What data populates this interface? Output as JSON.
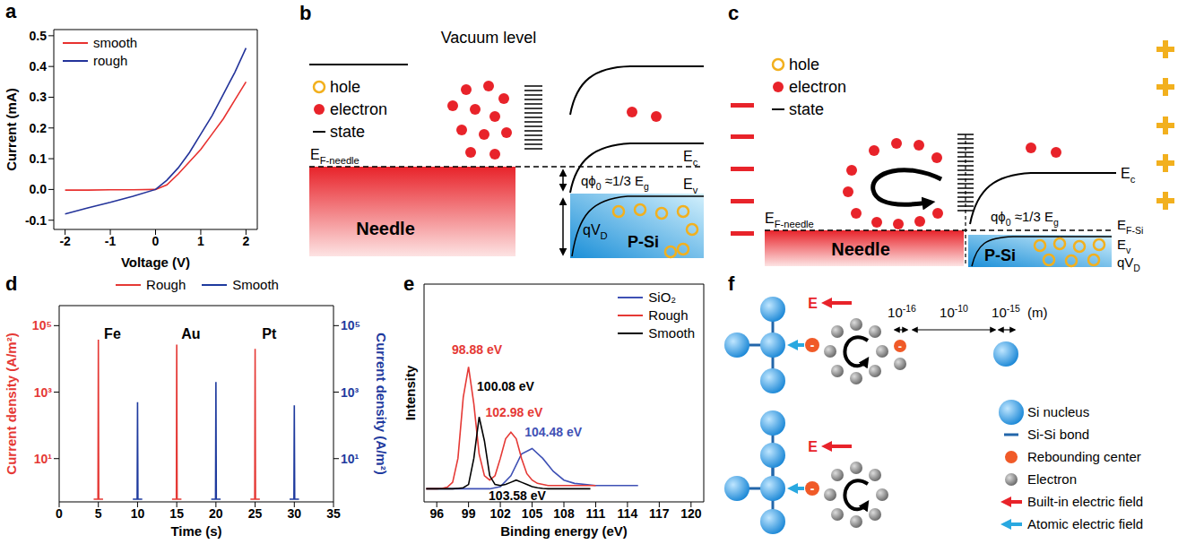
{
  "chart_data": [
    {
      "letter": "a",
      "type": "line",
      "x_label": "Voltage (V)",
      "y_label": "Current (mA)",
      "x": [
        -2,
        -1.5,
        -1,
        -0.5,
        0,
        0.25,
        0.5,
        0.75,
        1,
        1.25,
        1.5,
        1.75,
        2
      ],
      "series": [
        {
          "name": "smooth",
          "color": "#e8312f",
          "values": [
            -0.002,
            -0.002,
            -0.001,
            -0.001,
            0,
            0.015,
            0.05,
            0.09,
            0.13,
            0.18,
            0.23,
            0.29,
            0.35
          ]
        },
        {
          "name": "rough",
          "color": "#23339a",
          "values": [
            -0.08,
            -0.06,
            -0.042,
            -0.022,
            0,
            0.03,
            0.07,
            0.12,
            0.18,
            0.24,
            0.31,
            0.38,
            0.46
          ]
        }
      ],
      "xlim": [
        -2.25,
        2.25
      ],
      "xticks": [
        -2,
        -1,
        0,
        1,
        2
      ],
      "ylim": [
        -0.13,
        0.52
      ],
      "yticks": [
        -0.1,
        {
          "value": 0,
          "label": "0.0"
        },
        0.1,
        0.2,
        0.3,
        0.4,
        0.5
      ],
      "legend": "top-left"
    },
    {
      "letter": "d",
      "type": "line",
      "x_label": "Time (s)",
      "y_label": "Current density (A/m²)",
      "y2_label": "Current density (A/m²)",
      "xlim": [
        0,
        35
      ],
      "xticks": [
        0,
        5,
        10,
        15,
        20,
        25,
        30,
        35
      ],
      "ylim": [
        0.5,
        400000
      ],
      "yticks": [
        {
          "value": 10,
          "label": "10¹"
        },
        {
          "value": 1000,
          "label": "10³"
        },
        {
          "value": 100000,
          "label": "10⁵"
        }
      ],
      "y2lim": [
        0.5,
        400000
      ],
      "y2ticks": [
        {
          "value": 10,
          "label": "10¹"
        },
        {
          "value": 1000,
          "label": "10³"
        },
        {
          "value": 100000,
          "label": "10⁵"
        }
      ],
      "log": "y",
      "legend": "top",
      "series": [
        {
          "name": "Rough",
          "color": "#e53935",
          "x": [
            4.4,
            4.95,
            5,
            5.05,
            5.6,
            10,
            14.4,
            14.95,
            15,
            15.05,
            15.6,
            20,
            24.4,
            24.95,
            25,
            25.05,
            25.6
          ],
          "values": [
            0.6,
            0.6,
            38000,
            0.6,
            0.6,
            null,
            0.6,
            0.6,
            27000,
            0.6,
            0.6,
            null,
            0.6,
            0.6,
            20000,
            0.6,
            0.6
          ]
        },
        {
          "name": "Smooth",
          "color": "#1e3a9e",
          "axis": "y2",
          "x": [
            9.4,
            9.95,
            10,
            10.05,
            10.6,
            15,
            19.4,
            19.95,
            20,
            20.05,
            20.6,
            25,
            29.4,
            29.95,
            30,
            30.05,
            30.6
          ],
          "values": [
            0.6,
            0.6,
            500,
            0.6,
            0.6,
            null,
            0.6,
            0.6,
            2000,
            0.6,
            0.6,
            null,
            0.6,
            0.6,
            400,
            0.6,
            0.6
          ]
        }
      ],
      "annotations": [
        {
          "text": "Fe",
          "x": 6.8
        },
        {
          "text": "Au",
          "x": 16.8
        },
        {
          "text": "Pt",
          "x": 26.8
        }
      ]
    },
    {
      "letter": "e",
      "type": "line",
      "x_label": "Binding energy (eV)",
      "y_label": "Intensity",
      "xlim": [
        94.8,
        121.2
      ],
      "xticks": [
        96,
        99,
        102,
        105,
        108,
        111,
        114,
        117,
        120
      ],
      "ylim": [
        0,
        1
      ],
      "tick_labels": "x",
      "legend": "top-right",
      "series": [
        {
          "name": "SiO₂",
          "color": "#3f51b5",
          "x": [
            95,
            96,
            97,
            98,
            99,
            100,
            101,
            102,
            103,
            104,
            105,
            106,
            107,
            108,
            109,
            110,
            111,
            112,
            113,
            114,
            115
          ],
          "values": [
            0.06,
            0.06,
            0.06,
            0.06,
            0.06,
            0.06,
            0.06,
            0.07,
            0.12,
            0.22,
            0.245,
            0.2,
            0.14,
            0.1,
            0.085,
            0.08,
            0.075,
            0.075,
            0.075,
            0.075,
            0.075
          ]
        },
        {
          "name": "Rough",
          "color": "#e53935",
          "x": [
            95,
            95.5,
            96,
            96.5,
            97,
            97.5,
            98,
            98.5,
            99,
            99.5,
            100,
            100.5,
            101,
            101.5,
            102,
            102.5,
            103,
            103.5,
            104,
            104.5,
            105,
            105.5,
            106,
            106.5,
            107,
            107.5,
            108,
            108.5,
            109,
            109.5,
            110,
            110.5,
            111
          ],
          "values": [
            0.06,
            0.06,
            0.06,
            0.062,
            0.068,
            0.09,
            0.2,
            0.48,
            0.62,
            0.45,
            0.22,
            0.12,
            0.1,
            0.12,
            0.2,
            0.29,
            0.32,
            0.29,
            0.2,
            0.13,
            0.1,
            0.085,
            0.08,
            0.075,
            0.075,
            0.075,
            0.075,
            0.075,
            0.075,
            0.075,
            0.075,
            0.075,
            0.075
          ]
        },
        {
          "name": "Smooth",
          "color": "#000000",
          "x": [
            95,
            95.5,
            96,
            96.5,
            97,
            97.5,
            98,
            98.5,
            99,
            99.5,
            100,
            100.5,
            101,
            101.5,
            102,
            102.5,
            103,
            103.5,
            104,
            104.5,
            105,
            105.5,
            106,
            106.5,
            107,
            107.5,
            108,
            108.5,
            109,
            109.5,
            110,
            110.5
          ],
          "values": [
            0.06,
            0.06,
            0.06,
            0.06,
            0.06,
            0.06,
            0.062,
            0.065,
            0.08,
            0.2,
            0.39,
            0.28,
            0.12,
            0.08,
            0.075,
            0.08,
            0.09,
            0.1,
            0.09,
            0.08,
            0.07,
            0.065,
            0.062,
            0.06,
            0.06,
            0.06,
            0.06,
            0.06,
            0.06,
            0.06,
            0.06,
            0.06
          ]
        }
      ],
      "annotations": [
        {
          "text": "98.88 eV",
          "x": 99.8,
          "y": 0.7,
          "color": "#e53935"
        },
        {
          "text": "100.08 eV",
          "x": 102.5,
          "y": 0.53,
          "color": "#000000"
        },
        {
          "text": "102.98 eV",
          "x": 103.3,
          "y": 0.41,
          "color": "#e53935"
        },
        {
          "text": "104.48 eV",
          "x": 107,
          "y": 0.32,
          "color": "#3f51b5"
        },
        {
          "text": "103.58 eV",
          "x": 103.6,
          "y": 0.03,
          "color": "#000000"
        }
      ]
    }
  ],
  "diagrams": [
    {
      "letter": "b",
      "vacuum_level": "Vacuum level",
      "legend": {
        "hole": "hole",
        "electron": "electron",
        "state": "state"
      },
      "fermi_needle": [
        {
          "t": "E"
        },
        {
          "t": "F-needle",
          "sub": true
        }
      ],
      "needle": "Needle",
      "conduction": [
        {
          "t": "E"
        },
        {
          "t": "c",
          "sub": true
        }
      ],
      "valence": [
        {
          "t": "E"
        },
        {
          "t": "v",
          "sub": true
        }
      ],
      "barrier": [
        {
          "t": "qϕ"
        },
        {
          "t": "0",
          "sub": true
        },
        {
          "t": " ≈1/3 E"
        },
        {
          "t": "g",
          "sub": true
        }
      ],
      "built_in": [
        {
          "t": "qV"
        },
        {
          "t": "D",
          "sub": true
        }
      ],
      "semiconductor": "P-Si"
    },
    {
      "letter": "c",
      "legend": {
        "hole": "hole",
        "electron": "electron",
        "state": "state"
      },
      "fermi_needle": [
        {
          "t": "E"
        },
        {
          "t": "F-needle",
          "sub": true
        }
      ],
      "needle": "Needle",
      "conduction": [
        {
          "t": "E"
        },
        {
          "t": "c",
          "sub": true
        }
      ],
      "valence": [
        {
          "t": "E"
        },
        {
          "t": "v",
          "sub": true
        }
      ],
      "fermi_si": [
        {
          "t": "E"
        },
        {
          "t": "F-Si",
          "sub": true
        }
      ],
      "barrier": [
        {
          "t": "qϕ"
        },
        {
          "t": "0",
          "sub": true
        },
        {
          "t": " ≈1/3 E"
        },
        {
          "t": "g",
          "sub": true
        }
      ],
      "built_in": [
        {
          "t": "qV"
        },
        {
          "t": "D",
          "sub": true
        }
      ],
      "semiconductor": "P-Si"
    },
    {
      "letter": "f",
      "field": "E",
      "charge": "-",
      "scale": [
        [
          {
            "t": "10"
          },
          {
            "t": "-16",
            "sup": true
          }
        ],
        [
          {
            "t": "10"
          },
          {
            "t": "-10",
            "sup": true
          }
        ],
        [
          {
            "t": "10"
          },
          {
            "t": "-15",
            "sup": true
          }
        ]
      ],
      "unit": "(m)",
      "legend": {
        "nucleus": "Si nucleus",
        "bond": "Si-Si bond",
        "rebound": "Rebounding center",
        "electron": "Electron",
        "builtin": "Built-in electric field",
        "atomic": "Atomic electric field"
      }
    }
  ]
}
